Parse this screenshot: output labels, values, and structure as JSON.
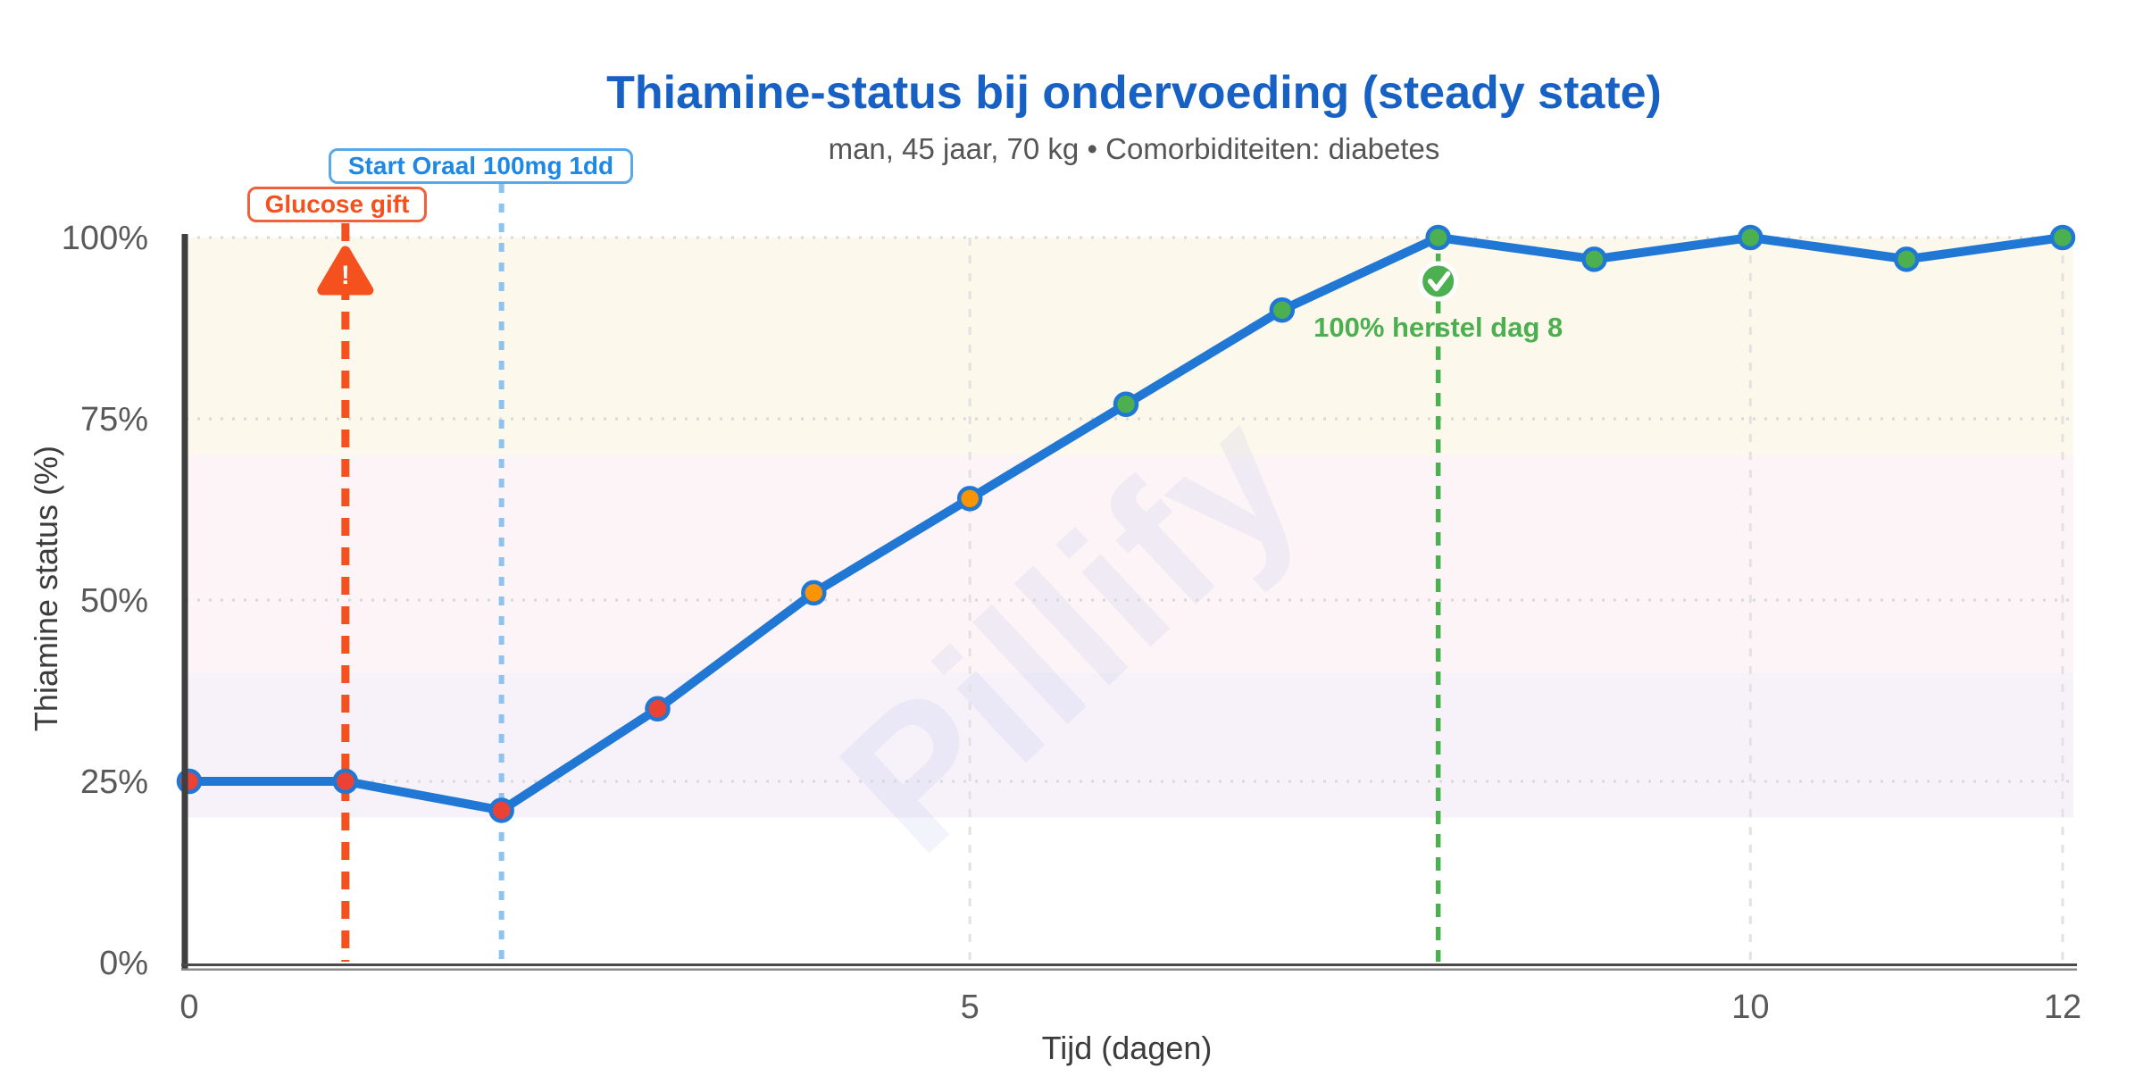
{
  "header": {
    "title": "Thiamine-status bij ondervoeding (steady state)",
    "subtitle": "man, 45 jaar, 70 kg • Comorbiditeiten: diabetes",
    "title_color": "#1760c4",
    "subtitle_color": "#555555"
  },
  "watermark": {
    "text": "Pillify"
  },
  "chart_data": {
    "type": "line",
    "title": "Thiamine-status bij ondervoeding (steady state)",
    "subtitle": "man, 45 jaar, 70 kg • Comorbiditeiten: diabetes",
    "xlabel": "Tijd (dagen)",
    "ylabel": "Thiamine status (%)",
    "xlim": [
      0,
      12
    ],
    "ylim": [
      0,
      100
    ],
    "grid": true,
    "legend_position": "none",
    "x_ticks": [
      {
        "value": 0,
        "label": "0"
      },
      {
        "value": 5,
        "label": "5"
      },
      {
        "value": 10,
        "label": "10"
      },
      {
        "value": 12,
        "label": "12"
      }
    ],
    "y_ticks": [
      {
        "value": 0,
        "label": "0%"
      },
      {
        "value": 25,
        "label": "25%"
      },
      {
        "value": 50,
        "label": "50%"
      },
      {
        "value": 75,
        "label": "75%"
      },
      {
        "value": 100,
        "label": "100%"
      }
    ],
    "y_gridlines": [
      25,
      50,
      75,
      100
    ],
    "x_gridlines": [
      5,
      10,
      12
    ],
    "zones": [
      {
        "from": 70,
        "to": 100,
        "color": "#fdf8ec"
      },
      {
        "from": 40,
        "to": 70,
        "color": "#fcf4f6"
      },
      {
        "from": 20,
        "to": 40,
        "color": "#f7f2fa"
      }
    ],
    "series": [
      {
        "name": "Thiamine status",
        "x": [
          0,
          1,
          2,
          3,
          4,
          5,
          6,
          7,
          8,
          9,
          10,
          11,
          12
        ],
        "values": [
          25,
          25,
          21,
          35,
          51,
          64,
          77,
          90,
          100,
          97,
          100,
          97,
          100
        ],
        "line_color": "#2077d4",
        "point_colors": [
          "#ea4335",
          "#ea4335",
          "#ea4335",
          "#ea4335",
          "#f89406",
          "#f89406",
          "#4caf50",
          "#4caf50",
          "#4caf50",
          "#4caf50",
          "#4caf50",
          "#4caf50",
          "#4caf50"
        ]
      }
    ],
    "annotations": [
      {
        "id": "glucose-gift",
        "label": "Glucose gift",
        "day": 1,
        "line_style": "dashed",
        "color": "#f4511e",
        "icon": "warning-triangle",
        "icon_glyph": "!"
      },
      {
        "id": "start-oraal",
        "label": "Start Oraal 100mg 1dd",
        "day": 2,
        "line_style": "dotted",
        "color": "#1e88e5",
        "line_color": "#8fc3ef",
        "border_color": "#58a9ec"
      },
      {
        "id": "herstel",
        "label": "100% herstel dag 8",
        "day": 8,
        "line_style": "dashed",
        "color": "#4caf50",
        "icon": "check-circle",
        "icon_glyph": "✓"
      }
    ],
    "axis_colors": {
      "tick_text": "#595959",
      "axis_line": "#3f3f3f",
      "grid": "#d9d9d9"
    }
  }
}
